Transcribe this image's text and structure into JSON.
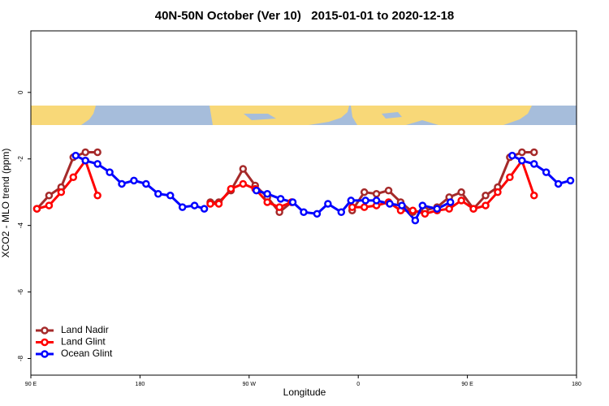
{
  "chart_data": {
    "type": "line",
    "title": "40N-50N October (Ver 10)   2015-01-01 to 2020-12-18",
    "xlabel": "Longitude",
    "ylabel": "XCO2 - MLO trend (ppm)",
    "xlim": [
      90,
      540
    ],
    "ylim": [
      -8.5,
      1.85
    ],
    "xticks": [
      {
        "value": 90,
        "label": "90 E"
      },
      {
        "value": 180,
        "label": "180"
      },
      {
        "value": 270,
        "label": "90 W"
      },
      {
        "value": 360,
        "label": "0"
      },
      {
        "value": 450,
        "label": "90 E"
      },
      {
        "value": 540,
        "label": "180"
      }
    ],
    "yticks": [
      0,
      -2,
      -4,
      -6,
      -8
    ],
    "legend": "bottom-left",
    "series": [
      {
        "name": "Land Nadir",
        "color": "#a52a2a",
        "x": [
          95,
          105,
          115,
          125,
          135,
          145,
          null,
          238,
          245,
          255,
          265,
          275,
          285,
          295,
          305,
          null,
          355,
          365,
          375,
          385,
          395,
          405,
          415,
          425,
          435,
          445,
          455,
          465,
          475,
          485,
          495,
          505
        ],
        "values": [
          -3.5,
          -3.1,
          -2.85,
          -1.95,
          -1.8,
          -1.8,
          null,
          -3.3,
          -3.3,
          -2.95,
          -2.3,
          -2.8,
          -3.15,
          -3.6,
          -3.3,
          null,
          -3.55,
          -3.0,
          -3.05,
          -2.95,
          -3.3,
          -3.6,
          -3.55,
          -3.45,
          -3.15,
          -3.0,
          -3.5,
          -3.1,
          -2.85,
          -1.95,
          -1.8,
          -1.8
        ]
      },
      {
        "name": "Land Glint",
        "color": "#ff0000",
        "x": [
          95,
          105,
          115,
          125,
          135,
          145,
          null,
          238,
          245,
          255,
          265,
          275,
          285,
          295,
          305,
          null,
          355,
          365,
          375,
          385,
          395,
          405,
          415,
          425,
          435,
          445,
          455,
          465,
          475,
          485,
          495,
          505
        ],
        "values": [
          -3.5,
          -3.4,
          -3.0,
          -2.55,
          -2.05,
          -3.1,
          null,
          -3.35,
          -3.35,
          -2.9,
          -2.75,
          -2.9,
          -3.3,
          -3.45,
          -3.3,
          null,
          -3.45,
          -3.45,
          -3.4,
          -3.3,
          -3.55,
          -3.55,
          -3.65,
          -3.55,
          -3.5,
          -3.25,
          -3.5,
          -3.4,
          -3.0,
          -2.55,
          -2.05,
          -3.1
        ]
      },
      {
        "name": "Ocean Glint",
        "color": "#0000ff",
        "x": [
          127,
          135,
          145,
          155,
          165,
          175,
          185,
          195,
          205,
          215,
          225,
          233,
          null,
          276,
          285,
          296,
          306,
          315,
          326,
          335,
          346,
          354,
          366,
          375,
          386,
          396,
          407,
          413,
          425,
          436,
          null,
          487,
          495,
          505,
          515,
          525,
          535
        ],
        "values": [
          -1.9,
          -2.05,
          -2.15,
          -2.4,
          -2.75,
          -2.65,
          -2.75,
          -3.05,
          -3.1,
          -3.45,
          -3.4,
          -3.5,
          null,
          -2.95,
          -3.05,
          -3.2,
          -3.3,
          -3.6,
          -3.65,
          -3.35,
          -3.6,
          -3.25,
          -3.25,
          -3.25,
          -3.35,
          -3.4,
          -3.85,
          -3.4,
          -3.5,
          -3.3,
          null,
          -1.9,
          -2.05,
          -2.15,
          -2.4,
          -2.75,
          -2.65
        ]
      }
    ]
  }
}
